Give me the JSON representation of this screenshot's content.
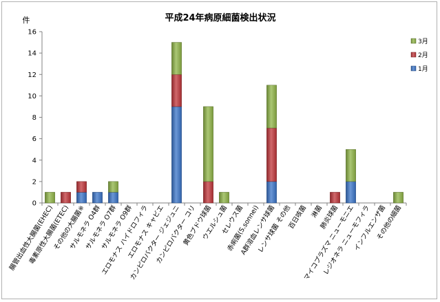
{
  "chart_data": {
    "type": "bar",
    "stacked": true,
    "title": "平成24年病原細菌検出状況",
    "ylabel": "件",
    "ylim": [
      0,
      16
    ],
    "yticks": [
      0,
      2,
      4,
      6,
      8,
      10,
      12,
      14,
      16
    ],
    "grid": false,
    "legend_position": "right",
    "categories": [
      "腸管出血性大腸菌(EHEC)",
      "毒素原性大腸菌(ETEC)",
      "その他の大腸菌※",
      "サルモネラ O4群",
      "サルモネラ O7群",
      "サルモネラ O9群",
      "エロモナス ハイドロフィラ",
      "エロモナス キャビエ",
      "カンピロバクター ジェジュニ",
      "カンピロバクター コリ",
      "黄色ブドウ球菌",
      "ウエルシュ菌",
      "セレウス菌",
      "赤痢菌(S.sonnei)",
      "A群溶血レンサ球菌",
      "レンサ球菌 その他",
      "百日咳菌",
      "淋菌",
      "肺炎球菌",
      "マイコプラズマ ニューモニエ",
      "レジオネラ ニューモフィラ",
      "インフルエンザ菌",
      "その他の細菌"
    ],
    "series": [
      {
        "name": "1月",
        "color": "#3a74c8",
        "values": [
          0,
          0,
          1,
          1,
          1,
          0,
          0,
          0,
          9,
          0,
          0,
          0,
          0,
          0,
          2,
          0,
          0,
          0,
          0,
          2,
          0,
          0,
          0
        ]
      },
      {
        "name": "2月",
        "color": "#c0353a",
        "values": [
          0,
          1,
          1,
          0,
          0,
          0,
          0,
          0,
          3,
          0,
          2,
          0,
          0,
          0,
          5,
          0,
          0,
          0,
          1,
          0,
          0,
          0,
          0
        ]
      },
      {
        "name": "3月",
        "color": "#8fb446",
        "values": [
          1,
          0,
          0,
          0,
          1,
          0,
          0,
          0,
          3,
          0,
          7,
          1,
          0,
          0,
          4,
          0,
          0,
          0,
          0,
          3,
          0,
          0,
          1
        ]
      }
    ],
    "legend_order": [
      "3月",
      "2月",
      "1月"
    ]
  }
}
